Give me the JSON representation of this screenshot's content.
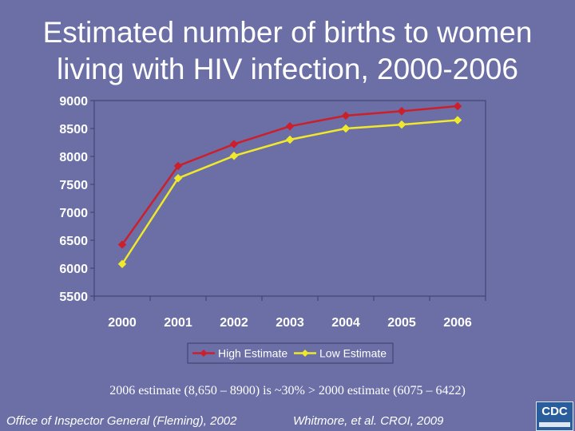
{
  "title": {
    "line1": "Estimated number of births to women",
    "line2": "living with HIV infection, 2000-2006"
  },
  "chart_data": {
    "type": "line",
    "title": "Estimated number of births to women living with HIV infection, 2000-2006",
    "xlabel": "",
    "ylabel": "",
    "categories": [
      "2000",
      "2001",
      "2002",
      "2003",
      "2004",
      "2005",
      "2006"
    ],
    "ylim": [
      5500,
      9000
    ],
    "yticks": [
      5500,
      6000,
      6500,
      7000,
      7500,
      8000,
      8500,
      9000
    ],
    "grid": false,
    "legend_position": "bottom",
    "series": [
      {
        "name": "High Estimate",
        "color": "#cc1f2b",
        "values": [
          6422,
          7830,
          8220,
          8540,
          8730,
          8810,
          8900
        ]
      },
      {
        "name": "Low Estimate",
        "color": "#f0e82a",
        "values": [
          6075,
          7610,
          8010,
          8300,
          8500,
          8570,
          8650
        ]
      }
    ]
  },
  "note": "2006 estimate (8,650 – 8900) is ~30% > 2000 estimate (6075 – 6422)",
  "sources": {
    "left": "Office of Inspector General (Fleming), 2002",
    "right": "Whitmore, et al. CROI, 2009"
  },
  "logo": {
    "text": "CDC"
  }
}
